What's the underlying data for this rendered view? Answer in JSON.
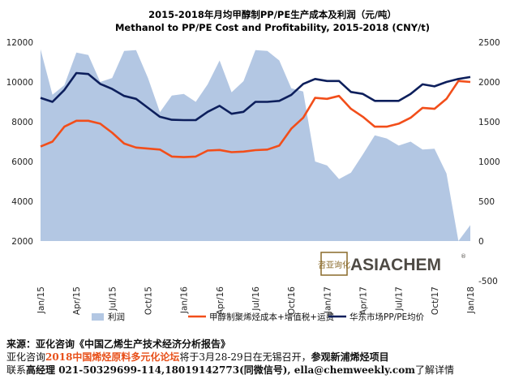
{
  "chart_data": {
    "type": "line",
    "title": "2015-2018年月均甲醇制PP/PE生产成本及利润（元/吨）",
    "subtitle": "Methanol to PP/PE Cost and Profitability, 2015-2018 (CNY/t)",
    "x": [
      "Jan/15",
      "Feb/15",
      "Mar/15",
      "Apr/15",
      "May/15",
      "Jun/15",
      "Jul/15",
      "Aug/15",
      "Sep/15",
      "Oct/15",
      "Nov/15",
      "Dec/15",
      "Jan/16",
      "Feb/16",
      "Mar/16",
      "Apr/16",
      "May/16",
      "Jun/16",
      "Jul/16",
      "Aug/16",
      "Sep/16",
      "Oct/16",
      "Nov/16",
      "Dec/16",
      "Jan/17",
      "Feb/17",
      "Mar/17",
      "Apr/17",
      "May/17",
      "Jun/17",
      "Jul/17",
      "Aug/17",
      "Sep/17",
      "Oct/17",
      "Nov/17",
      "Dec/17",
      "Jan/18"
    ],
    "xticks": [
      "Jan/15",
      "Apr/15",
      "Jul/15",
      "Oct/15",
      "Jan/16",
      "Apr/16",
      "Jul/16",
      "Oct/16",
      "Jan/17",
      "Apr/17",
      "Jul/17",
      "Oct/17",
      "Jan/18"
    ],
    "y_left": {
      "ticks": [
        2000,
        4000,
        6000,
        8000,
        10000,
        12000
      ],
      "range": [
        2000,
        12000
      ]
    },
    "y_right": {
      "ticks": [
        -500,
        0,
        500,
        1000,
        1500,
        2000,
        2500
      ],
      "range": [
        -500,
        2500
      ]
    },
    "series": [
      {
        "name": "利润",
        "kind": "area",
        "axis": "right",
        "color": "#b3c7e3",
        "values": [
          2410,
          1840,
          1960,
          2370,
          2340,
          2000,
          2050,
          2390,
          2400,
          2050,
          1620,
          1830,
          1850,
          1750,
          1970,
          2270,
          1870,
          2010,
          2400,
          2390,
          2270,
          1920,
          1880,
          1000,
          950,
          780,
          860,
          1090,
          1330,
          1290,
          1200,
          1250,
          1150,
          1160,
          850,
          0,
          200
        ]
      },
      {
        "name": "甲醇制聚烯烃成本+增值税+运费",
        "kind": "line",
        "axis": "left",
        "color": "#f24e1a",
        "values": [
          6750,
          7000,
          7750,
          8050,
          8050,
          7900,
          7450,
          6900,
          6700,
          6650,
          6600,
          6250,
          6220,
          6250,
          6550,
          6580,
          6470,
          6500,
          6570,
          6600,
          6800,
          7650,
          8200,
          9200,
          9150,
          9300,
          8650,
          8250,
          7750,
          7750,
          7900,
          8200,
          8700,
          8650,
          9150,
          10050,
          10000
        ]
      },
      {
        "name": "华东市场PP/PE均价",
        "kind": "line",
        "axis": "left",
        "color": "#0d1f5c",
        "values": [
          9200,
          9000,
          9600,
          10450,
          10400,
          9900,
          9650,
          9300,
          9150,
          8700,
          8250,
          8100,
          8080,
          8080,
          8500,
          8800,
          8400,
          8500,
          9000,
          9000,
          9050,
          9350,
          9900,
          10150,
          10050,
          10050,
          9500,
          9400,
          9050,
          9050,
          9050,
          9400,
          9880,
          9780,
          10000,
          10150,
          10250
        ]
      }
    ],
    "legend_position": "bottom"
  },
  "watermark": {
    "cn": "咨亚询化",
    "text": "ASIACHEM",
    "reg": "®"
  },
  "footer": {
    "line1": "来源：亚化咨询《中国乙烯生产技术经济分析报告》",
    "line2_a": "亚化咨询",
    "line2_highlight": "2018中国烯烃原料多元化论坛",
    "line2_b": "将于3月28-29日在无锡召开，",
    "line2_bold": "参观新浦烯烃项目",
    "line3_a": "联系",
    "line3_bold": "高经理 021-50329699-114,18019142773(同微信号), ella@chemweekly.com",
    "line3_b": "了解详情"
  }
}
